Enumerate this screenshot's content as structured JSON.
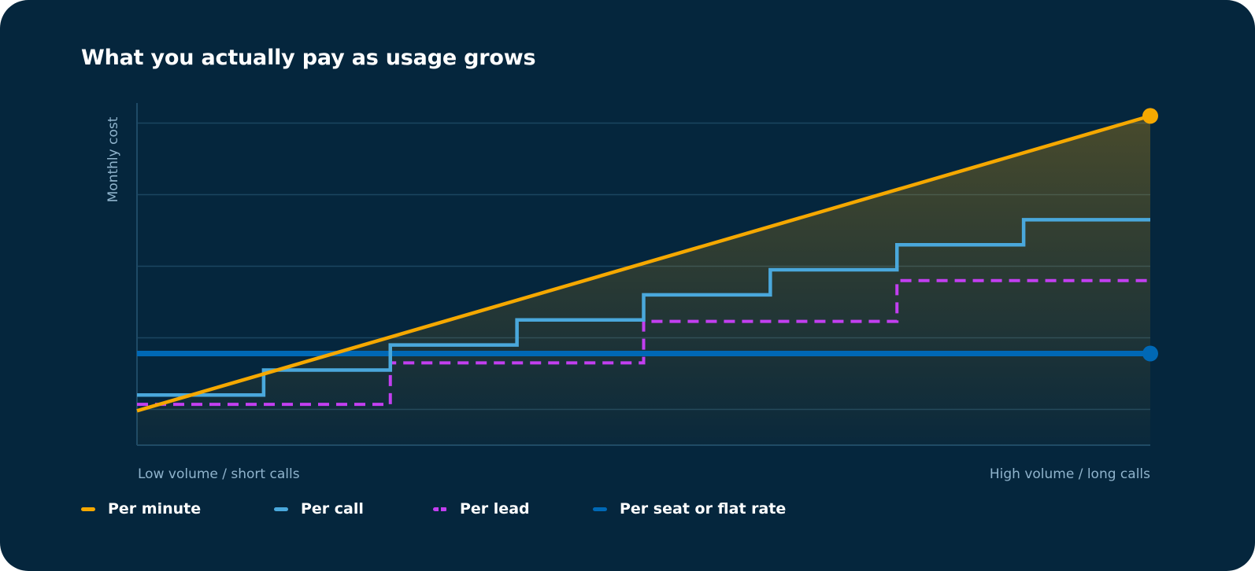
{
  "chart_data": {
    "type": "line",
    "title": "What you actually pay as usage grows",
    "ylabel": "Monthly cost",
    "x_axis": {
      "start_label": "Low volume / short calls",
      "end_label": "High volume / long calls",
      "range": [
        0,
        8
      ]
    },
    "ylim": [
      0,
      4.5
    ],
    "yticks": [
      0.5,
      1.5,
      2.5,
      3.5,
      4.5
    ],
    "ytick_labels_shown": false,
    "grid": true,
    "legend_placement": "bottom",
    "series": [
      {
        "name": "Per minute",
        "style": "solid-line",
        "color": "#f5a800",
        "x": [
          0,
          8
        ],
        "y": [
          0.48,
          4.6
        ],
        "end_marker": true,
        "area_fill": true
      },
      {
        "name": "Per call",
        "style": "step",
        "color": "#4aa8dc",
        "x": [
          0,
          1,
          2,
          3,
          4,
          5,
          6,
          7,
          8
        ],
        "y": [
          0.7,
          1.05,
          1.4,
          1.75,
          2.1,
          2.45,
          2.8,
          3.15,
          3.15
        ]
      },
      {
        "name": "Per lead",
        "style": "dashed-step",
        "color": "#c23ff0",
        "x": [
          0,
          2,
          4,
          6,
          8
        ],
        "y": [
          0.57,
          1.15,
          1.73,
          2.3,
          2.3
        ]
      },
      {
        "name": "Per seat or flat rate",
        "style": "solid-line",
        "color": "#0068b5",
        "x": [
          0,
          8
        ],
        "y": [
          1.28,
          1.28
        ],
        "end_marker": true
      }
    ]
  }
}
